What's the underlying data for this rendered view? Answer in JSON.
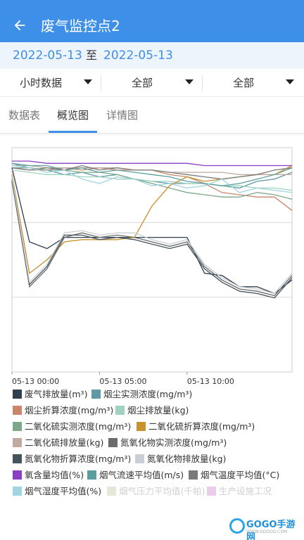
{
  "header": {
    "title": "废气监控点2",
    "back_icon": "arrow-left-icon"
  },
  "date_range": {
    "start": "2022-05-13",
    "separator": "至",
    "end": "2022-05-13"
  },
  "filters": [
    {
      "label": "小时数据",
      "icon": "caret-down-icon"
    },
    {
      "label": "全部",
      "icon": "caret-down-icon"
    },
    {
      "label": "全部",
      "icon": "caret-down-icon"
    }
  ],
  "tabs": [
    {
      "label": "数据表",
      "active": false
    },
    {
      "label": "概览图",
      "active": true
    },
    {
      "label": "详情图",
      "active": false
    }
  ],
  "colors": {
    "primary": "#3d8fe8",
    "date_bar": "#eef4fb"
  },
  "chart_data": {
    "type": "line",
    "x_tick_labels": [
      "05-13 00:00",
      "05-13 05:00",
      "05-13 10:00"
    ],
    "hours": 17,
    "y_normalized_range": [
      0,
      1
    ],
    "grid": true,
    "legend_position": "bottom",
    "series": [
      {
        "name": "废气排放量(m³)",
        "color": "#2e3f4f",
        "values": [
          0.91,
          0.58,
          0.55,
          0.6,
          0.6,
          0.6,
          0.6,
          0.6,
          0.6,
          0.6,
          0.6,
          0.44,
          0.43,
          0.38,
          0.38,
          0.35,
          0.41
        ]
      },
      {
        "name": "烟尘实测浓度(mg/m³)",
        "color": "#5f9aa5",
        "values": [
          0.93,
          0.91,
          0.9,
          0.88,
          0.89,
          0.87,
          0.88,
          0.86,
          0.85,
          0.84,
          0.84,
          0.84,
          0.83,
          0.82,
          0.85,
          0.86,
          0.89
        ]
      },
      {
        "name": "烟尘折算浓度(mg/m³)",
        "color": "#c9866b",
        "values": [
          0.91,
          0.9,
          0.9,
          0.91,
          0.9,
          0.91,
          0.9,
          0.9,
          0.9,
          0.88,
          0.87,
          0.84,
          0.8,
          0.79,
          0.78,
          0.78,
          0.72
        ]
      },
      {
        "name": "烟尘排放量(kg)",
        "color": "#9fd3c0",
        "values": [
          0.9,
          0.89,
          0.88,
          0.88,
          0.87,
          0.87,
          0.86,
          0.86,
          0.85,
          0.85,
          0.84,
          0.84,
          0.83,
          0.83,
          0.82,
          0.82,
          0.81
        ]
      },
      {
        "name": "二氧化硫实测浓度(mg/m³)",
        "color": "#7da98a",
        "values": [
          0.91,
          0.91,
          0.9,
          0.9,
          0.89,
          0.89,
          0.88,
          0.86,
          0.84,
          0.82,
          0.8,
          0.79,
          0.78,
          0.78,
          0.8,
          0.79,
          0.77
        ]
      },
      {
        "name": "二氧化硫折算浓度(mg/m³)",
        "color": "#c8922e",
        "values": [
          0.88,
          0.44,
          0.5,
          0.58,
          0.59,
          0.59,
          0.59,
          0.6,
          0.74,
          0.83,
          0.87,
          0.85,
          0.86,
          0.87,
          0.88,
          0.88,
          0.92
        ]
      },
      {
        "name": "二氧化硫排放量(kg)",
        "color": "#c1aaa1",
        "values": [
          0.92,
          0.92,
          0.91,
          0.91,
          0.91,
          0.91,
          0.91,
          0.9,
          0.9,
          0.89,
          0.89,
          0.89,
          0.89,
          0.88,
          0.88,
          0.88,
          0.88
        ]
      },
      {
        "name": "氮氧化物实测浓度(mg/m³)",
        "color": "#6b6b6b",
        "values": [
          0.85,
          0.38,
          0.46,
          0.6,
          0.62,
          0.6,
          0.61,
          0.6,
          0.58,
          0.56,
          0.58,
          0.47,
          0.41,
          0.37,
          0.36,
          0.34,
          0.43
        ]
      },
      {
        "name": "氮氧化物折算浓度(mg/m³)",
        "color": "#44545c",
        "values": [
          0.86,
          0.39,
          0.47,
          0.61,
          0.61,
          0.59,
          0.6,
          0.59,
          0.57,
          0.55,
          0.57,
          0.46,
          0.4,
          0.36,
          0.35,
          0.33,
          0.42
        ]
      },
      {
        "name": "氮氧化物排放量(kg)",
        "color": "#c9cfd6",
        "values": [
          0.87,
          0.4,
          0.48,
          0.62,
          0.63,
          0.61,
          0.62,
          0.62,
          0.59,
          0.57,
          0.59,
          0.48,
          0.42,
          0.38,
          0.37,
          0.35,
          0.44
        ]
      },
      {
        "name": "氧含量均值(%)",
        "color": "#8a3fc6",
        "values": [
          0.94,
          0.94,
          0.93,
          0.93,
          0.93,
          0.93,
          0.93,
          0.93,
          0.93,
          0.93,
          0.93,
          0.92,
          0.92,
          0.92,
          0.92,
          0.92,
          0.92
        ]
      },
      {
        "name": "烟气流速平均值(m/s)",
        "color": "#5c9e9e",
        "values": [
          0.93,
          0.92,
          0.92,
          0.9,
          0.91,
          0.89,
          0.9,
          0.89,
          0.88,
          0.87,
          0.85,
          0.84,
          0.83,
          0.84,
          0.86,
          0.88,
          0.91
        ]
      },
      {
        "name": "烟气温度平均值(°C)",
        "color": "#7a7a7a",
        "values": [
          0.91,
          0.9,
          0.91,
          0.9,
          0.92,
          0.9,
          0.91,
          0.9,
          0.9,
          0.89,
          0.88,
          0.87,
          0.86,
          0.87,
          0.88,
          0.9,
          0.91
        ]
      },
      {
        "name": "烟气湿度平均值(%)",
        "color": "#9fd4e2",
        "values": [
          0.92,
          0.91,
          0.89,
          0.9,
          0.86,
          0.84,
          0.87,
          0.86,
          0.83,
          0.84,
          0.82,
          0.83,
          0.86,
          0.8,
          0.82,
          0.81,
          0.8
        ]
      },
      {
        "name": "烟气压力平均值(千帕)",
        "color": "#e7e7d8",
        "hidden": true,
        "values": []
      },
      {
        "name": "生产设施工况",
        "color": "#e9cde9",
        "hidden": true,
        "values": []
      }
    ]
  },
  "watermark": {
    "text": "GOGO手游网",
    "sub": "WWW.GOGOO.COM"
  }
}
